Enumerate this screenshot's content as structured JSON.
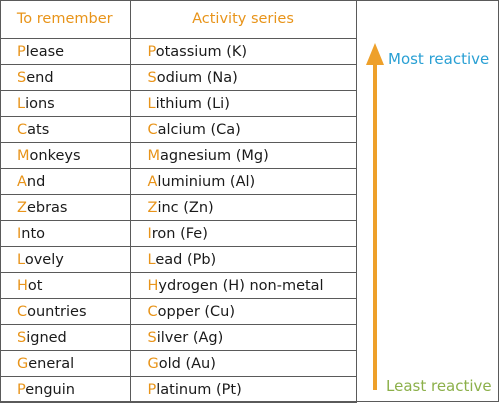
{
  "table": {
    "header_mnemonic": "To remember",
    "header_series": "Activity series",
    "rows": [
      {
        "mnemonic_initial": "P",
        "mnemonic_rest": "lease",
        "element_initial": "P",
        "element_rest": "otassium (K)"
      },
      {
        "mnemonic_initial": "S",
        "mnemonic_rest": "end",
        "element_initial": "S",
        "element_rest": "odium (Na)"
      },
      {
        "mnemonic_initial": "L",
        "mnemonic_rest": "ions",
        "element_initial": "L",
        "element_rest": "ithium (Li)"
      },
      {
        "mnemonic_initial": "C",
        "mnemonic_rest": "ats",
        "element_initial": "C",
        "element_rest": "alcium (Ca)"
      },
      {
        "mnemonic_initial": "M",
        "mnemonic_rest": "onkeys",
        "element_initial": "M",
        "element_rest": "agnesium (Mg)"
      },
      {
        "mnemonic_initial": "A",
        "mnemonic_rest": "nd",
        "element_initial": "A",
        "element_rest": "luminium (Al)"
      },
      {
        "mnemonic_initial": "Z",
        "mnemonic_rest": "ebras",
        "element_initial": "Z",
        "element_rest": "inc (Zn)"
      },
      {
        "mnemonic_initial": "I",
        "mnemonic_rest": "nto",
        "element_initial": "I",
        "element_rest": "ron (Fe)"
      },
      {
        "mnemonic_initial": "L",
        "mnemonic_rest": "ovely",
        "element_initial": "L",
        "element_rest": "ead (Pb)"
      },
      {
        "mnemonic_initial": "H",
        "mnemonic_rest": "ot",
        "element_initial": "H",
        "element_rest": "ydrogen (H) non-metal"
      },
      {
        "mnemonic_initial": "C",
        "mnemonic_rest": "ountries",
        "element_initial": "C",
        "element_rest": "opper (Cu)"
      },
      {
        "mnemonic_initial": "S",
        "mnemonic_rest": "igned",
        "element_initial": "S",
        "element_rest": "ilver (Ag)"
      },
      {
        "mnemonic_initial": "G",
        "mnemonic_rest": "eneral",
        "element_initial": "G",
        "element_rest": "old (Au)"
      },
      {
        "mnemonic_initial": "P",
        "mnemonic_rest": "enguin",
        "element_initial": "P",
        "element_rest": "latinum (Pt)"
      }
    ]
  },
  "arrow": {
    "top_label": "Most reactive",
    "bottom_label": "Least reactive",
    "color": "#eea02a",
    "top_label_color": "#2aa0d4",
    "bottom_label_color": "#8cb04a"
  },
  "colors": {
    "header_text": "#e8941a",
    "initial_letter": "#e8941a",
    "body_text": "#1a1a1a",
    "border": "#5a5a5a"
  }
}
